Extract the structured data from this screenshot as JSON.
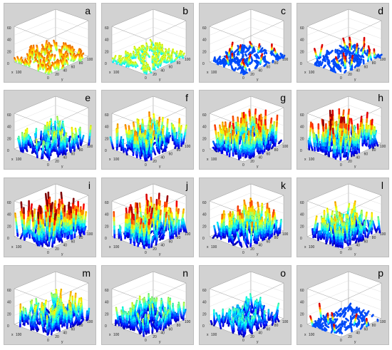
{
  "figure": {
    "panels": [
      {
        "label": "a",
        "color_profile": "green-yellow",
        "height_level": 0.18,
        "density": 0.55
      },
      {
        "label": "b",
        "color_profile": "cyan-green",
        "height_level": 0.1,
        "density": 0.8
      },
      {
        "label": "c",
        "color_profile": "blue",
        "height_level": 0.06,
        "density": 0.9
      },
      {
        "label": "d",
        "color_profile": "blue-sparse-tall",
        "height_level": 0.12,
        "density": 0.9
      },
      {
        "label": "e",
        "color_profile": "jet",
        "height_level": 0.45,
        "density": 0.6
      },
      {
        "label": "f",
        "color_profile": "jet",
        "height_level": 0.55,
        "density": 0.75
      },
      {
        "label": "g",
        "color_profile": "jet",
        "height_level": 0.65,
        "density": 0.85
      },
      {
        "label": "h",
        "color_profile": "jet",
        "height_level": 0.75,
        "density": 0.85
      },
      {
        "label": "i",
        "color_profile": "jet",
        "height_level": 0.8,
        "density": 0.8
      },
      {
        "label": "j",
        "color_profile": "jet",
        "height_level": 0.72,
        "density": 0.85
      },
      {
        "label": "k",
        "color_profile": "jet",
        "height_level": 0.6,
        "density": 0.9
      },
      {
        "label": "l",
        "color_profile": "jet",
        "height_level": 0.5,
        "density": 0.9
      },
      {
        "label": "m",
        "color_profile": "jet",
        "height_level": 0.5,
        "density": 0.85
      },
      {
        "label": "n",
        "color_profile": "jet",
        "height_level": 0.4,
        "density": 0.8
      },
      {
        "label": "o",
        "color_profile": "jet",
        "height_level": 0.3,
        "density": 0.7
      },
      {
        "label": "p",
        "color_profile": "blue-sparse",
        "height_level": 0.15,
        "density": 0.6
      }
    ],
    "z_ticks": [
      "0",
      "20",
      "40",
      "60"
    ],
    "x_ticks": [
      "0",
      "20",
      "40",
      "60",
      "80",
      "100"
    ],
    "x_axis_letter": "y",
    "y_axis_letter": "x",
    "z_axis_letter": "z",
    "corner_tick": "100"
  }
}
